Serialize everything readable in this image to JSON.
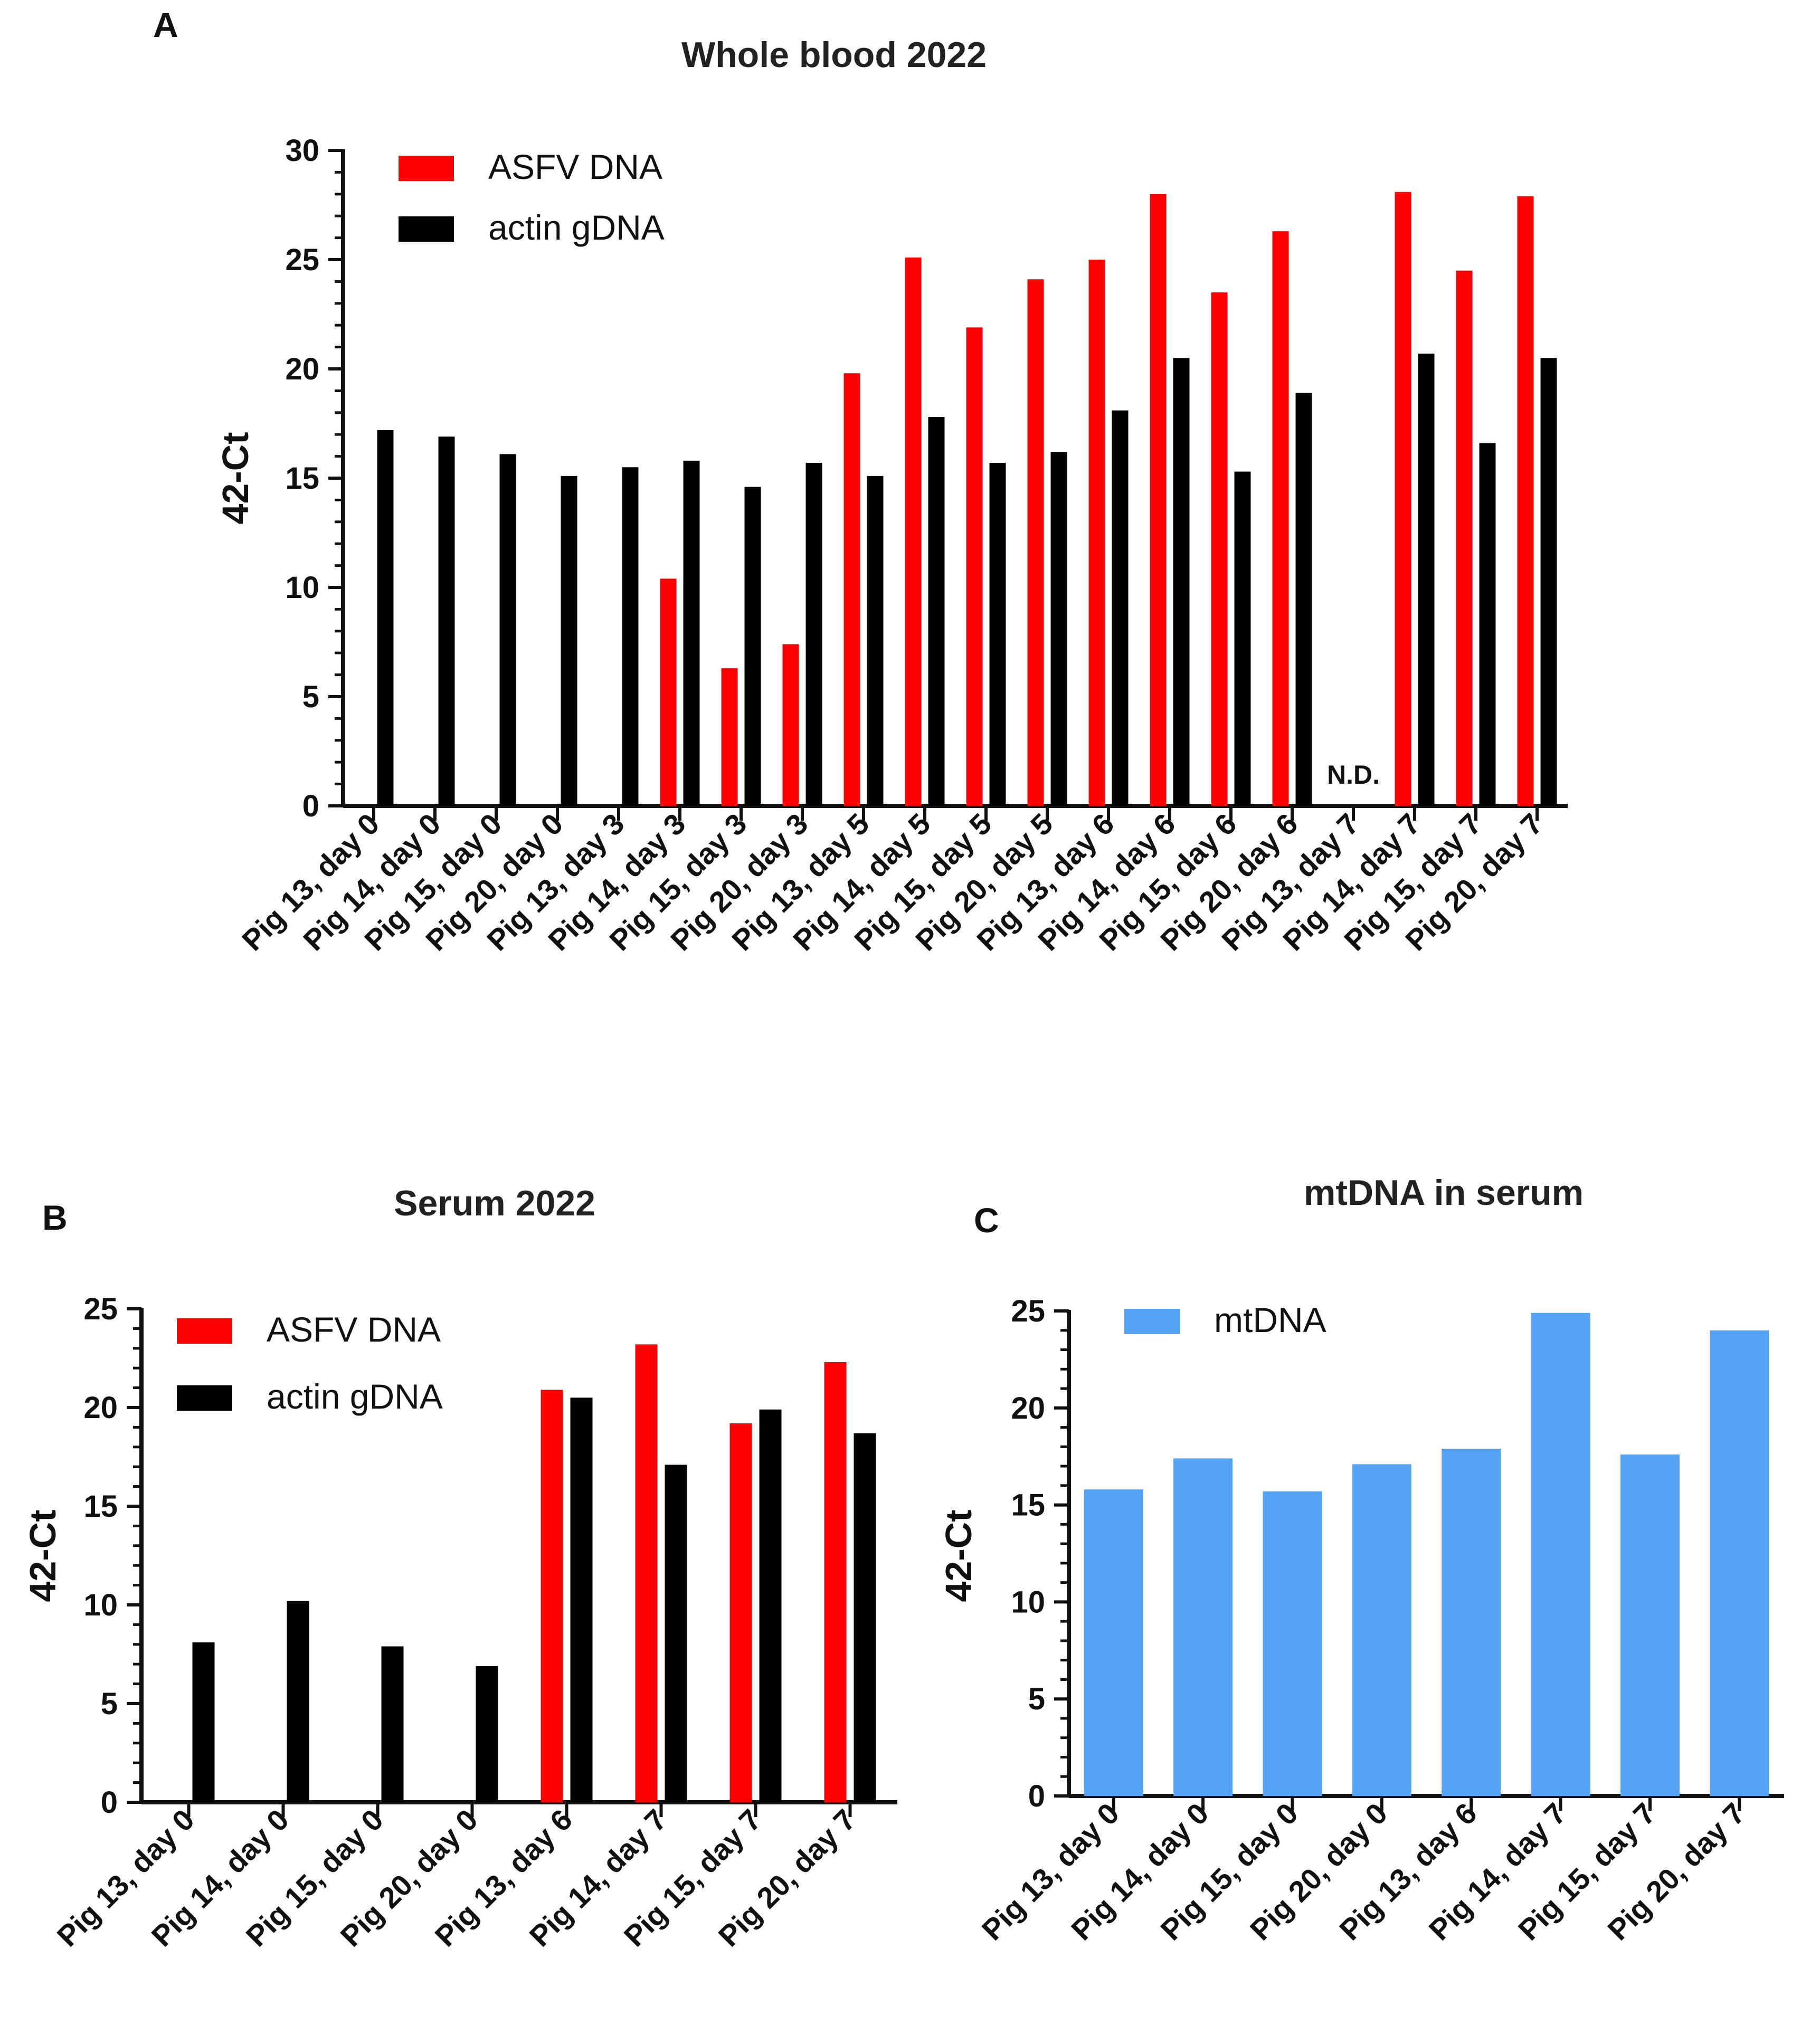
{
  "colors": {
    "asfv": "#ff0000",
    "actin": "#000000",
    "mtdna": "#55a3f5",
    "axis": "#111111"
  },
  "chart_data": [
    {
      "panel": "A",
      "type": "bar",
      "title": "Whole blood 2022",
      "ylabel": "42-Ct",
      "xlabel": "",
      "ylim": [
        0,
        30
      ],
      "yticks": [
        0,
        5,
        10,
        15,
        20,
        25,
        30
      ],
      "legend_position": "top-left",
      "categories": [
        "Pig 13, day 0",
        "Pig 14, day 0",
        "Pig 15, day 0",
        "Pig 20, day 0",
        "Pig 13, day 3",
        "Pig 14, day 3",
        "Pig 15, day 3",
        "Pig 20, day 3",
        "Pig 13, day 5",
        "Pig 14, day 5",
        "Pig 15, day 5",
        "Pig 20, day 5",
        "Pig 13, day 6",
        "Pig 14, day 6",
        "Pig 15, day 6",
        "Pig 20, day 6",
        "Pig 13, day 7",
        "Pig 14, day 7",
        "Pig 15, day 7",
        "Pig 20, day 7"
      ],
      "series": [
        {
          "name": "ASFV DNA",
          "color": "#ff0000",
          "values": [
            null,
            null,
            null,
            null,
            null,
            10.4,
            6.3,
            7.4,
            19.8,
            25.1,
            21.9,
            24.1,
            25.0,
            28.0,
            23.5,
            26.3,
            null,
            28.1,
            24.5,
            27.9
          ]
        },
        {
          "name": "actin gDNA",
          "color": "#000000",
          "values": [
            17.2,
            16.9,
            16.1,
            15.1,
            15.5,
            15.8,
            14.6,
            15.7,
            15.1,
            17.8,
            15.7,
            16.2,
            18.1,
            20.5,
            15.3,
            18.9,
            null,
            20.7,
            16.6,
            20.5
          ]
        }
      ],
      "annotations": [
        {
          "text": "N.D.",
          "category_index": 16
        }
      ]
    },
    {
      "panel": "B",
      "type": "bar",
      "title": "Serum 2022",
      "ylabel": "42-Ct",
      "xlabel": "",
      "ylim": [
        0,
        25
      ],
      "yticks": [
        0,
        5,
        10,
        15,
        20,
        25
      ],
      "legend_position": "top-left",
      "categories": [
        "Pig 13, day 0",
        "Pig 14, day 0",
        "Pig 15, day 0",
        "Pig 20, day 0",
        "Pig 13, day 6",
        "Pig 14, day 7",
        "Pig 15, day 7",
        "Pig 20, day 7"
      ],
      "series": [
        {
          "name": "ASFV DNA",
          "color": "#ff0000",
          "values": [
            null,
            null,
            null,
            null,
            20.9,
            23.2,
            19.2,
            22.3
          ]
        },
        {
          "name": "actin gDNA",
          "color": "#000000",
          "values": [
            8.1,
            10.2,
            7.9,
            6.9,
            20.5,
            17.1,
            19.9,
            18.7
          ]
        }
      ],
      "annotations": []
    },
    {
      "panel": "C",
      "type": "bar",
      "title": "mtDNA in serum",
      "ylabel": "42-Ct",
      "xlabel": "",
      "ylim": [
        0,
        25
      ],
      "yticks": [
        0,
        5,
        10,
        15,
        20,
        25
      ],
      "legend_position": "top-left",
      "categories": [
        "Pig 13, day 0",
        "Pig 14, day 0",
        "Pig 15, day 0",
        "Pig 20, day 0",
        "Pig 13, day 6",
        "Pig 14, day 7",
        "Pig 15, day 7",
        "Pig 20, day 7"
      ],
      "series": [
        {
          "name": "mtDNA",
          "color": "#55a3f5",
          "values": [
            15.8,
            17.4,
            15.7,
            17.1,
            17.9,
            24.9,
            17.6,
            24.0
          ]
        }
      ],
      "annotations": []
    }
  ]
}
